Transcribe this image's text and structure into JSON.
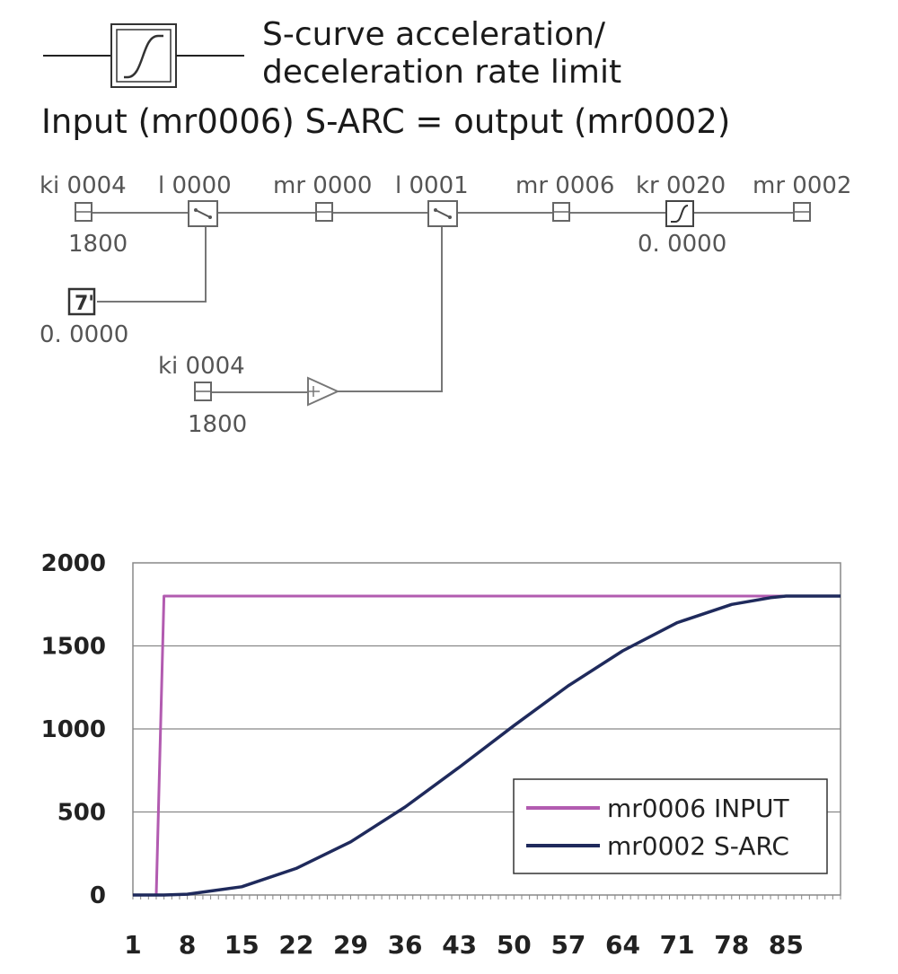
{
  "header": {
    "title_line1": "S-curve acceleration/",
    "title_line2": "deceleration rate limit",
    "formula": "Input (mr0006) S-ARC = output (mr0002)"
  },
  "block_diagram": {
    "nodes": {
      "ki0004_top": {
        "label": "ki 0004",
        "value": "1800"
      },
      "l0000": {
        "label": "l 0000"
      },
      "mr0000": {
        "label": "mr 0000"
      },
      "l0001": {
        "label": "l 0001"
      },
      "mr0006": {
        "label": "mr 0006"
      },
      "kr0020": {
        "label": "kr 0020",
        "value": "0. 0000"
      },
      "mr0002": {
        "label": "mr 0002"
      },
      "const_block": {
        "symbol": "7'",
        "value": "0. 0000"
      },
      "ki0004_bottom": {
        "label": "ki 0004",
        "value": "1800"
      }
    }
  },
  "chart_data": {
    "type": "line",
    "title": "",
    "xlabel": "",
    "ylabel": "",
    "ylim": [
      0,
      2000
    ],
    "yticks": [
      0,
      500,
      1000,
      1500,
      2000
    ],
    "xlim": [
      1,
      92
    ],
    "xticks": [
      1,
      8,
      15,
      22,
      29,
      36,
      43,
      50,
      57,
      64,
      71,
      78,
      85
    ],
    "grid": true,
    "legend_position": "bottom-right",
    "series": [
      {
        "name": "mr0006 INPUT",
        "color": "#b25bb0",
        "x": [
          1,
          4,
          5,
          92
        ],
        "y": [
          0,
          0,
          1800,
          1800
        ]
      },
      {
        "name": "mr0002 S-ARC",
        "color": "#1f2a5c",
        "x": [
          1,
          5,
          8,
          15,
          22,
          29,
          36,
          43,
          50,
          57,
          64,
          71,
          78,
          83,
          85,
          92
        ],
        "y": [
          0,
          0,
          5,
          50,
          160,
          320,
          530,
          770,
          1020,
          1260,
          1470,
          1640,
          1750,
          1790,
          1800,
          1800
        ]
      }
    ]
  }
}
